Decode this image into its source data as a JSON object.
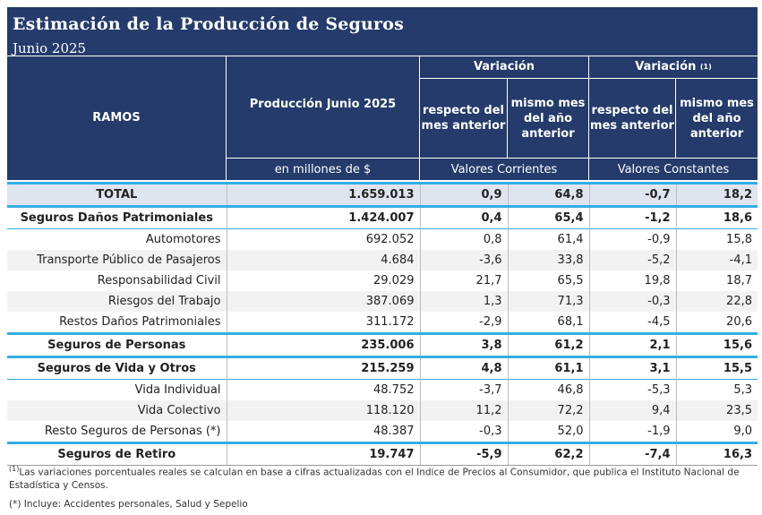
{
  "title": "Estimación de la Producción de Seguros",
  "subtitle": "Junio 2025",
  "header": {
    "ramos": "RAMOS",
    "produccion": "Producción Junio 2025",
    "variacion_1": "Variación",
    "variacion_2": "Variación",
    "variacion_2_sup": "(1)",
    "respecto": "respecto del mes anterior",
    "mismo_mes": "mismo mes del año anterior",
    "respecto_2": "respecto del mes anterior",
    "mismo_mes_2": "mismo mes del año anterior",
    "unidad": "en millones de $",
    "corrientes": "Valores Corrientes",
    "constantes": "Valores Constantes"
  },
  "rows": [
    {
      "name": "TOTAL",
      "prod": "1.659.013",
      "c1": "0,9",
      "c2": "64,8",
      "k1": "-0,7",
      "k2": "18,2"
    },
    {
      "name": "Seguros Daños Patrimoniales",
      "prod": "1.424.007",
      "c1": "0,4",
      "c2": "65,4",
      "k1": "-1,2",
      "k2": "18,6"
    },
    {
      "name": "Automotores",
      "prod": "692.052",
      "c1": "0,8",
      "c2": "61,4",
      "k1": "-0,9",
      "k2": "15,8"
    },
    {
      "name": "Transporte Público de Pasajeros",
      "prod": "4.684",
      "c1": "-3,6",
      "c2": "33,8",
      "k1": "-5,2",
      "k2": "-4,1"
    },
    {
      "name": "Responsabilidad Civil",
      "prod": "29.029",
      "c1": "21,7",
      "c2": "65,5",
      "k1": "19,8",
      "k2": "18,7"
    },
    {
      "name": "Riesgos del Trabajo",
      "prod": "387.069",
      "c1": "1,3",
      "c2": "71,3",
      "k1": "-0,3",
      "k2": "22,8"
    },
    {
      "name": "Restos Daños Patrimoniales",
      "prod": "311.172",
      "c1": "-2,9",
      "c2": "68,1",
      "k1": "-4,5",
      "k2": "20,6"
    },
    {
      "name": "Seguros de Personas",
      "prod": "235.006",
      "c1": "3,8",
      "c2": "61,2",
      "k1": "2,1",
      "k2": "15,6"
    },
    {
      "name": "Seguros de Vida y Otros",
      "prod": "215.259",
      "c1": "4,8",
      "c2": "61,1",
      "k1": "3,1",
      "k2": "15,5"
    },
    {
      "name": "Vida Individual",
      "prod": "48.752",
      "c1": "-3,7",
      "c2": "46,8",
      "k1": "-5,3",
      "k2": "5,3"
    },
    {
      "name": "Vida Colectivo",
      "prod": "118.120",
      "c1": "11,2",
      "c2": "72,2",
      "k1": "9,4",
      "k2": "23,5"
    },
    {
      "name": "Resto Seguros de Personas (*)",
      "prod": "48.387",
      "c1": "-0,3",
      "c2": "52,0",
      "k1": "-1,9",
      "k2": "9,0"
    },
    {
      "name": "Seguros de Retiro",
      "prod": "19.747",
      "c1": "-5,9",
      "c2": "62,2",
      "k1": "-7,4",
      "k2": "16,3"
    }
  ],
  "footnotes": {
    "note1_sup": "(1)",
    "note1": "Las variaciones porcentuales reales se calculan en base a cifras actualizadas con  el Indice de Precios al Consumidor, que publica el Instituto Nacional de Estadística y  Censos.",
    "note2": "(*) Incluye: Accidentes personales, Salud y Sepelio"
  },
  "colors": {
    "header_bg": "#243b6b",
    "accent_line": "#33aee4",
    "total_bg": "#dfe5ef",
    "alt_row": "#f2f2f2"
  }
}
